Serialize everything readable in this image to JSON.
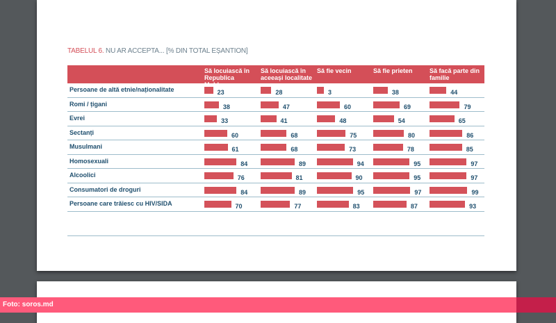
{
  "table": {
    "title_prefix": "TABELUL 6.",
    "title_rest": " NU AR ACCEPTA... [% DIN TOTAL EȘANTION]",
    "columns": [
      "Să locuiască în Republica Moldova",
      "Să locuiască în aceeași localitate",
      "Să fie vecin",
      "Să fie prieten",
      "Să facă parte din familie"
    ],
    "rows": [
      {
        "label": "Persoane de altă etnie/naționalitate",
        "values": [
          23,
          28,
          3,
          38,
          44
        ]
      },
      {
        "label": "Romi / țigani",
        "values": [
          38,
          47,
          60,
          69,
          79
        ]
      },
      {
        "label": "Evrei",
        "values": [
          33,
          41,
          48,
          54,
          65
        ]
      },
      {
        "label": "Sectanți",
        "values": [
          60,
          68,
          75,
          80,
          86
        ]
      },
      {
        "label": "Musulmani",
        "values": [
          61,
          68,
          73,
          78,
          85
        ]
      },
      {
        "label": "Homosexuali",
        "values": [
          84,
          89,
          94,
          95,
          97
        ]
      },
      {
        "label": "Alcoolici",
        "values": [
          76,
          81,
          90,
          95,
          97
        ]
      },
      {
        "label": "Consumatori de droguri",
        "values": [
          84,
          89,
          95,
          97,
          99
        ]
      },
      {
        "label": "Persoane care trăiesc cu HIV/SIDA",
        "values": [
          70,
          77,
          83,
          87,
          93
        ]
      }
    ],
    "bar_color": "#d4525a"
  },
  "caption": "Foto: soros.md"
}
